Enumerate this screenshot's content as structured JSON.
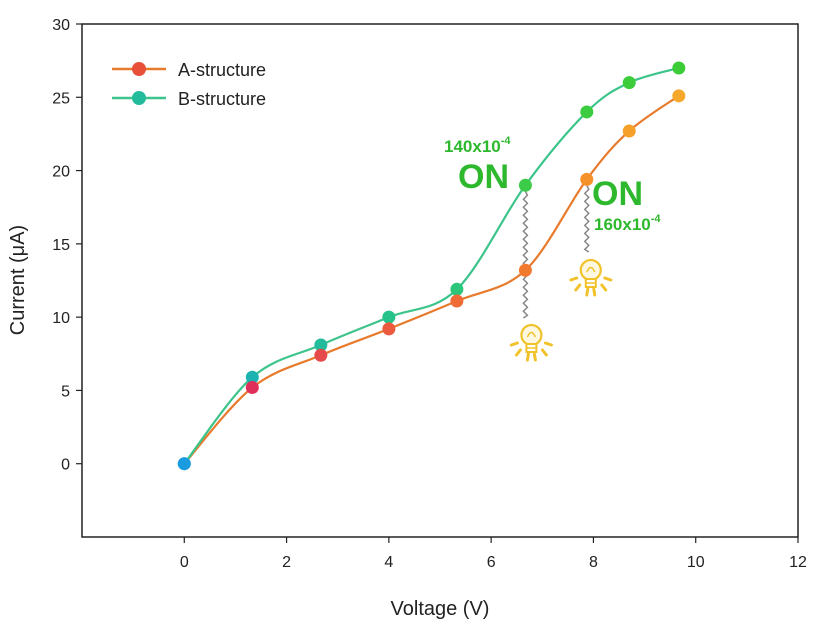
{
  "chart_data": {
    "type": "line",
    "xlabel": "Voltage (V)",
    "ylabel": "Current (μA)",
    "xlim": [
      -2,
      12
    ],
    "ylim": [
      -5,
      30
    ],
    "xticks": [
      "0",
      "2",
      "4",
      "6",
      "8",
      "10",
      "12"
    ],
    "yticks": [
      "0",
      "5",
      "10",
      "15",
      "20",
      "25",
      "30"
    ],
    "legend_position": "top-left",
    "grid": false,
    "series": [
      {
        "name": "A-structure",
        "line_color": "#e87a2c",
        "marker_colors": [
          "#1a9be0",
          "#e0305a",
          "#e64a4a",
          "#eb5a3c",
          "#ef6a34",
          "#f27a2e",
          "#f5922a",
          "#f6a02a",
          "#f6a82a"
        ],
        "x": [
          0,
          1.33,
          2.67,
          4.0,
          5.33,
          6.67,
          7.87,
          8.7,
          9.67
        ],
        "y": [
          0,
          5.2,
          7.4,
          9.2,
          11.1,
          13.2,
          19.4,
          22.7,
          25.1
        ]
      },
      {
        "name": "B-structure",
        "line_color": "#3cc48a",
        "marker_colors": [
          "#1a9be0",
          "#1ab3b0",
          "#22bc9c",
          "#26c28a",
          "#2cc67a",
          "#3ccc4a",
          "#3ccc40",
          "#3ccc3a",
          "#3ccc38"
        ],
        "x": [
          0,
          1.33,
          2.67,
          4.0,
          5.33,
          6.67,
          7.87,
          8.7,
          9.67
        ],
        "y": [
          0,
          5.9,
          8.1,
          10.0,
          11.9,
          19.0,
          24.0,
          26.0,
          27.0
        ]
      }
    ],
    "annotations": [
      {
        "mantissa": "140x10",
        "exponent": "-4",
        "label": "ON",
        "color": "#2db82d"
      },
      {
        "mantissa": "160x10",
        "exponent": "-4",
        "label": "ON",
        "color": "#2db82d"
      }
    ],
    "bulb_color": "#f2c22a"
  }
}
